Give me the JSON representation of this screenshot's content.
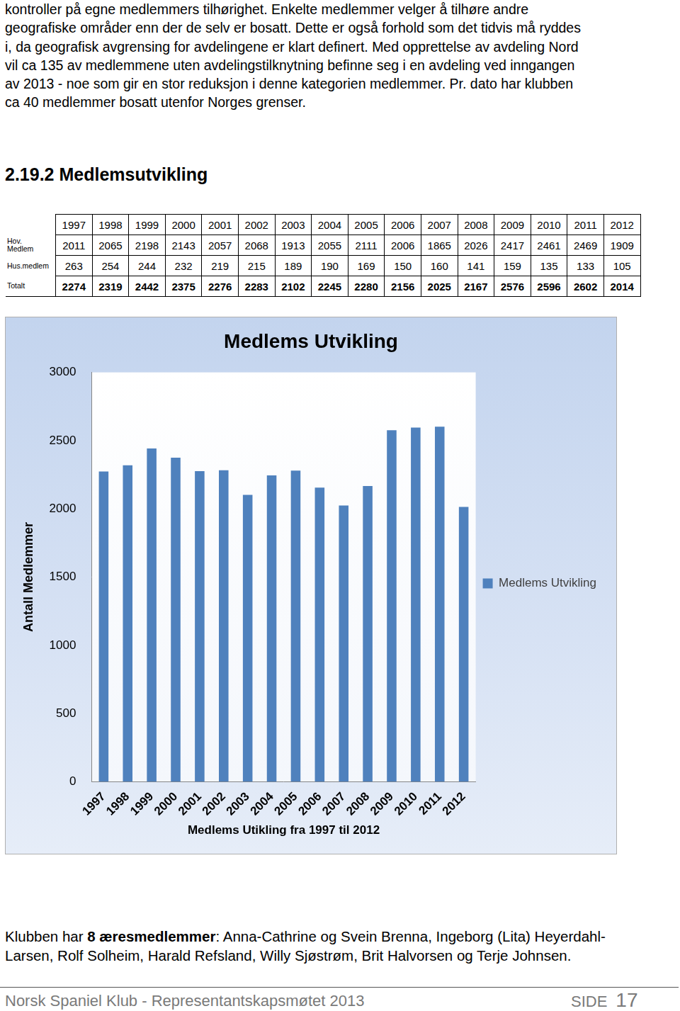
{
  "intro": {
    "lines": [
      "kontroller på egne medlemmers tilhørighet. Enkelte medlemmer velger å tilhøre andre",
      "geografiske områder enn der de selv er bosatt. Dette er også forhold som det tidvis må ryddes",
      "i, da geografisk avgrensing for avdelingene er klart definert. Med opprettelse av avdeling Nord",
      "vil ca 135 av medlemmene uten avdelingstilknytning befinne seg i en avdeling ved inngangen",
      "av 2013 - noe som gir en stor reduksjon i denne kategorien medlemmer. Pr. dato har klubben",
      "ca 40 medlemmer bosatt utenfor Norges grenser."
    ]
  },
  "heading": "2.19.2 Medlemsutvikling",
  "table": {
    "columns": [
      "1997",
      "1998",
      "1999",
      "2000",
      "2001",
      "2002",
      "2003",
      "2004",
      "2005",
      "2006",
      "2007",
      "2008",
      "2009",
      "2010",
      "2011",
      "2012"
    ],
    "rows": [
      {
        "label_lines": [
          "Hov.",
          "Medlem"
        ],
        "values": [
          2011,
          2065,
          2198,
          2143,
          2057,
          2068,
          1913,
          2055,
          2111,
          2006,
          1865,
          2026,
          2417,
          2461,
          2469,
          1909
        ]
      },
      {
        "label_lines": [
          "Hus.medlem"
        ],
        "values": [
          263,
          254,
          244,
          232,
          219,
          215,
          189,
          190,
          169,
          150,
          160,
          141,
          159,
          135,
          133,
          105
        ]
      },
      {
        "label_lines": [
          "Totalt"
        ],
        "values": [
          2274,
          2319,
          2442,
          2375,
          2276,
          2283,
          2102,
          2245,
          2280,
          2156,
          2025,
          2167,
          2576,
          2596,
          2602,
          2014
        ],
        "bold": true
      }
    ]
  },
  "chart_data": {
    "type": "bar",
    "title": "Medlems Utvikling",
    "x_label": "Medlems Utikling fra 1997 til 2012",
    "y_label": "Antall Medlemmer",
    "categories": [
      "1997",
      "1998",
      "1999",
      "2000",
      "2001",
      "2002",
      "2003",
      "2004",
      "2005",
      "2006",
      "2007",
      "2008",
      "2009",
      "2010",
      "2011",
      "2012"
    ],
    "series": [
      {
        "name": "Medlems Utvikling",
        "color": "#4f81bd",
        "values": [
          2274,
          2319,
          2442,
          2375,
          2276,
          2283,
          2102,
          2245,
          2280,
          2156,
          2025,
          2167,
          2576,
          2596,
          2602,
          2014
        ]
      }
    ],
    "ylim": [
      0,
      3000
    ],
    "yticks": [
      0,
      500,
      1000,
      1500,
      2000,
      2500,
      3000
    ],
    "grid": false,
    "legend": "right"
  },
  "outro": {
    "lines": [
      [
        {
          "text": "Klubben har "
        },
        {
          "text": "8 æresmedlemmer",
          "bold": true
        },
        {
          "text": ": Anna-Cathrine og Svein Brenna, Ingeborg (Lita) Heyerdahl-"
        }
      ],
      [
        {
          "text": "Larsen, Rolf Solheim, Harald Refsland, Willy Sjøstrøm, Brit Halvorsen og Terje Johnsen."
        }
      ]
    ]
  },
  "footer": {
    "left": "Norsk Spaniel Klub - Representantskapsmøtet 2013",
    "page_label": "SIDE",
    "page_number": "17"
  }
}
